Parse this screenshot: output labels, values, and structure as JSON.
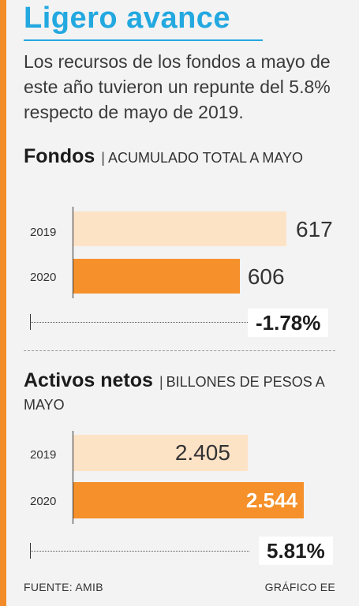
{
  "title": "Ligero avance",
  "intro": "Los recursos de los fondos a mayo de este año tuvieron un repunte del 5.8% respecto de mayo de 2019.",
  "colors": {
    "accent": "#f28c28",
    "title": "#23a8e0",
    "light_bar": "#fde3c6",
    "dark_bar": "#f5902a"
  },
  "chart_data": [
    {
      "type": "bar",
      "orientation": "horizontal",
      "title": "Fondos",
      "subtitle": "ACUMULADO TOTAL A MAYO",
      "categories": [
        "2019",
        "2020"
      ],
      "values": [
        617,
        606
      ],
      "value_labels": [
        "617",
        "606"
      ],
      "change_label": "-1.78%",
      "change": -1.78,
      "xlim": [
        0,
        700
      ]
    },
    {
      "type": "bar",
      "orientation": "horizontal",
      "title": "Activos netos",
      "subtitle": "BILLONES DE PESOS A MAYO",
      "categories": [
        "2019",
        "2020"
      ],
      "values": [
        2.405,
        2.544
      ],
      "value_labels": [
        "2.405",
        "2.544"
      ],
      "change_label": "5.81%",
      "change": 5.81,
      "xlim": [
        0,
        2.7
      ]
    }
  ],
  "footer": {
    "source": "FUENTE: AMIB",
    "credit": "GRÁFICO EE"
  }
}
